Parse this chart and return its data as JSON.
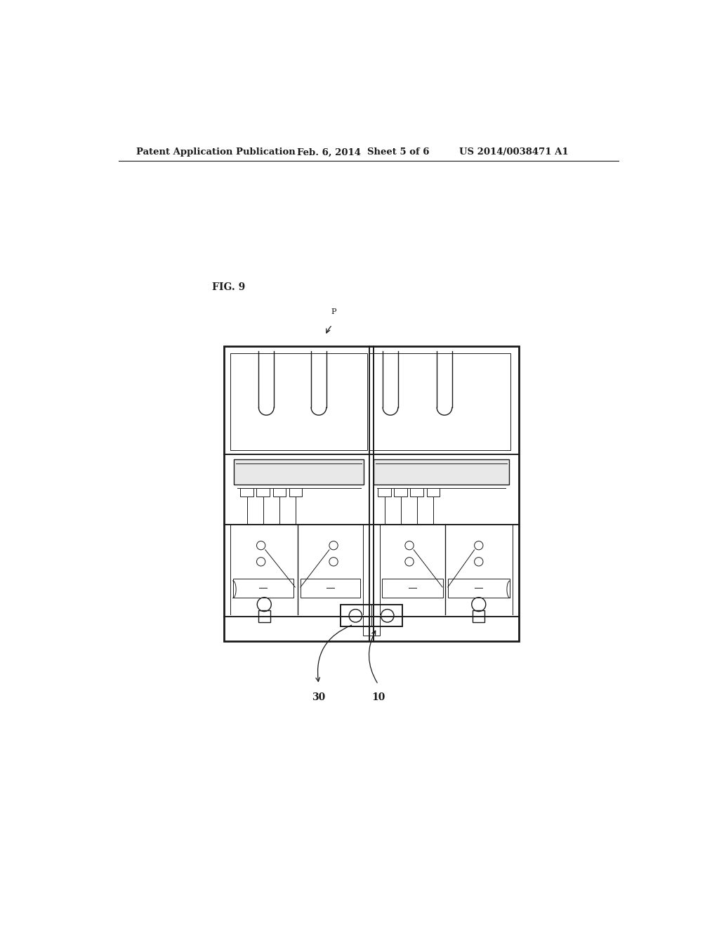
{
  "bg_color": "#ffffff",
  "line_color": "#1a1a1a",
  "header_text": "Patent Application Publication",
  "header_date": "Feb. 6, 2014",
  "header_sheet": "Sheet 5 of 6",
  "header_patent": "US 2014/0038471 A1",
  "fig_label": "FIG. 9",
  "label_P": "P",
  "label_30": "30",
  "label_10": "10",
  "lw_thick": 2.0,
  "lw_med": 1.4,
  "lw_thin": 1.0,
  "lw_vthin": 0.7
}
